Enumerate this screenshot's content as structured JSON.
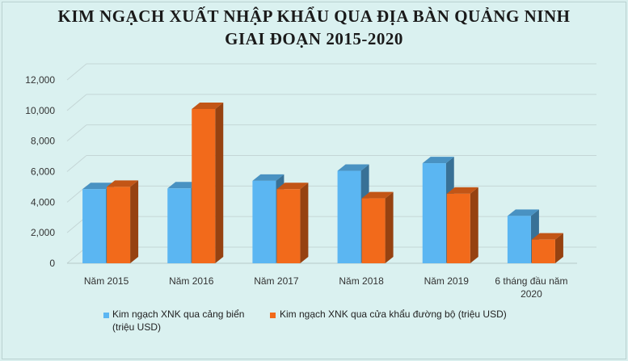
{
  "chart_data": {
    "type": "bar",
    "title_line1": "KIM NGẠCH XUẤT NHẬP KHẨU QUA ĐỊA BÀN QUẢNG NINH",
    "title_line2": "GIAI  ĐOẠN 2015-2020",
    "categories": [
      [
        "Năm 2015"
      ],
      [
        "Năm 2016"
      ],
      [
        "Năm 2017"
      ],
      [
        "Năm 2018"
      ],
      [
        "Năm 2019"
      ],
      [
        "6 tháng đầu năm",
        "2020"
      ]
    ],
    "series": [
      {
        "name": "Kim ngạch XNK qua cảng biển (triệu USD)",
        "values": [
          4850,
          4900,
          5400,
          6050,
          6550,
          3100
        ],
        "color": "#5bb6f2"
      },
      {
        "name": "Kim ngạch XNK qua cửa khẩu đường bộ (triệu USD)",
        "values": [
          5000,
          10100,
          4850,
          4250,
          4550,
          1550
        ],
        "color": "#f26a1b"
      }
    ],
    "legend": [
      {
        "line1": "Kim ngạch XNK qua cảng biển",
        "line2": "(triệu USD)"
      },
      {
        "line1": "Kim ngạch XNK qua cửa khẩu đường bộ (triệu USD)"
      }
    ],
    "yticks": [
      "0",
      "2,000",
      "4,000",
      "6,000",
      "8,000",
      "10,000",
      "12,000"
    ],
    "ylim": [
      0,
      12000
    ],
    "grid": true,
    "legend_position": "bottom"
  }
}
